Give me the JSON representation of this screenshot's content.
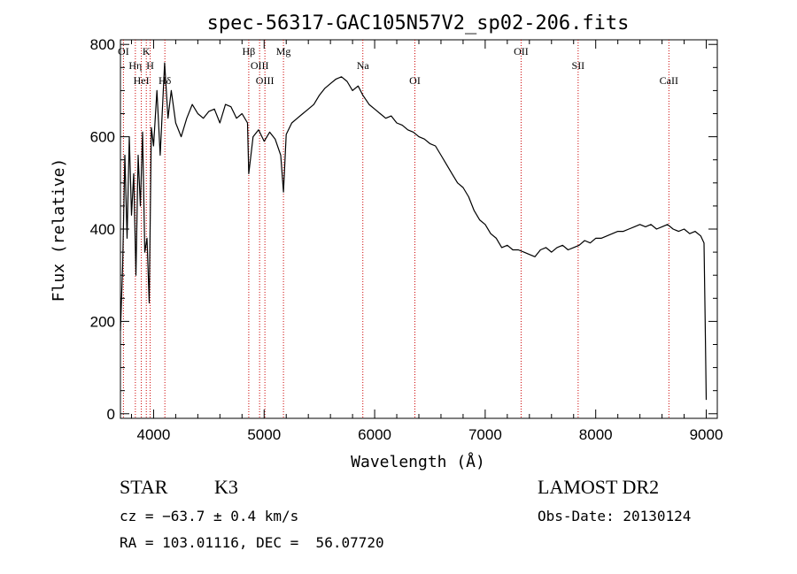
{
  "chart_data": {
    "type": "line",
    "title": "spec-56317-GAC105N57V2_sp02-206.fits",
    "xlabel": "Wavelength (Å)",
    "ylabel": "Flux (relative)",
    "xlim": [
      3700,
      9100
    ],
    "ylim": [
      -10,
      810
    ],
    "x_ticks": [
      4000,
      5000,
      6000,
      7000,
      8000,
      9000
    ],
    "x_tick_labels": [
      "4000",
      "5000",
      "6000",
      "7000",
      "8000",
      "9000"
    ],
    "y_ticks": [
      0,
      200,
      400,
      600,
      800
    ],
    "y_tick_labels": [
      "0",
      "200",
      "400",
      "600",
      "800"
    ],
    "grid": false,
    "line_color": "#000000",
    "marker_color": "#cc0000",
    "series": [
      {
        "x": [
          3700,
          3720,
          3740,
          3760,
          3780,
          3800,
          3820,
          3840,
          3860,
          3880,
          3900,
          3920,
          3940,
          3960,
          3980,
          4000,
          4030,
          4060,
          4100,
          4130,
          4160,
          4200,
          4250,
          4300,
          4350,
          4400,
          4450,
          4500,
          4550,
          4600,
          4650,
          4700,
          4750,
          4800,
          4850,
          4861,
          4900,
          4950,
          5000,
          5050,
          5100,
          5150,
          5175,
          5200,
          5250,
          5300,
          5350,
          5400,
          5450,
          5500,
          5550,
          5600,
          5650,
          5700,
          5750,
          5800,
          5850,
          5893,
          5950,
          6000,
          6050,
          6100,
          6150,
          6200,
          6250,
          6300,
          6350,
          6400,
          6450,
          6500,
          6550,
          6600,
          6650,
          6700,
          6750,
          6800,
          6850,
          6900,
          6950,
          7000,
          7050,
          7100,
          7150,
          7200,
          7250,
          7300,
          7350,
          7400,
          7450,
          7500,
          7550,
          7600,
          7650,
          7700,
          7750,
          7800,
          7850,
          7900,
          7950,
          8000,
          8050,
          8100,
          8150,
          8200,
          8250,
          8300,
          8350,
          8400,
          8450,
          8500,
          8550,
          8600,
          8650,
          8700,
          8750,
          8800,
          8850,
          8900,
          8950,
          8980,
          8990,
          9000
        ],
        "y": [
          180,
          320,
          560,
          380,
          600,
          430,
          520,
          300,
          560,
          450,
          610,
          350,
          380,
          240,
          620,
          580,
          700,
          560,
          760,
          640,
          700,
          630,
          600,
          640,
          670,
          650,
          640,
          655,
          660,
          630,
          670,
          665,
          640,
          650,
          630,
          520,
          600,
          615,
          590,
          610,
          595,
          560,
          480,
          605,
          630,
          640,
          650,
          660,
          670,
          690,
          705,
          715,
          725,
          730,
          720,
          700,
          710,
          690,
          670,
          660,
          650,
          640,
          645,
          630,
          625,
          615,
          610,
          600,
          595,
          585,
          580,
          560,
          540,
          520,
          500,
          490,
          470,
          440,
          420,
          410,
          390,
          380,
          360,
          365,
          355,
          355,
          350,
          345,
          340,
          355,
          360,
          350,
          360,
          365,
          355,
          360,
          365,
          375,
          370,
          380,
          380,
          385,
          390,
          395,
          395,
          400,
          405,
          410,
          405,
          410,
          400,
          405,
          410,
          400,
          395,
          400,
          390,
          395,
          385,
          370,
          200,
          30
        ]
      }
    ],
    "markers": [
      {
        "label": "OI",
        "x": 3727
      },
      {
        "label": "Hη",
        "x": 3835
      },
      {
        "label": "HeI",
        "x": 3889
      },
      {
        "label": "K",
        "x": 3934
      },
      {
        "label": "H",
        "x": 3969
      },
      {
        "label": "Hδ",
        "x": 4102
      },
      {
        "label": "Hβ",
        "x": 4861
      },
      {
        "label": "OIII",
        "x": 4959
      },
      {
        "label": "OIII",
        "x": 5007
      },
      {
        "label": "Mg",
        "x": 5175
      },
      {
        "label": "Na",
        "x": 5893
      },
      {
        "label": "OI",
        "x": 6364
      },
      {
        "label": "OII",
        "x": 7325
      },
      {
        "label": "SII",
        "x": 7841
      },
      {
        "label": "CaII",
        "x": 8662
      }
    ]
  },
  "info": {
    "object_class": "STAR",
    "subclass": "K3",
    "survey": "LAMOST DR2",
    "cz": "cz = −63.7 ± 0.4 km/s",
    "obs_date": "Obs-Date: 20130124",
    "coords": "RA = 103.01116, DEC =  56.07720"
  }
}
